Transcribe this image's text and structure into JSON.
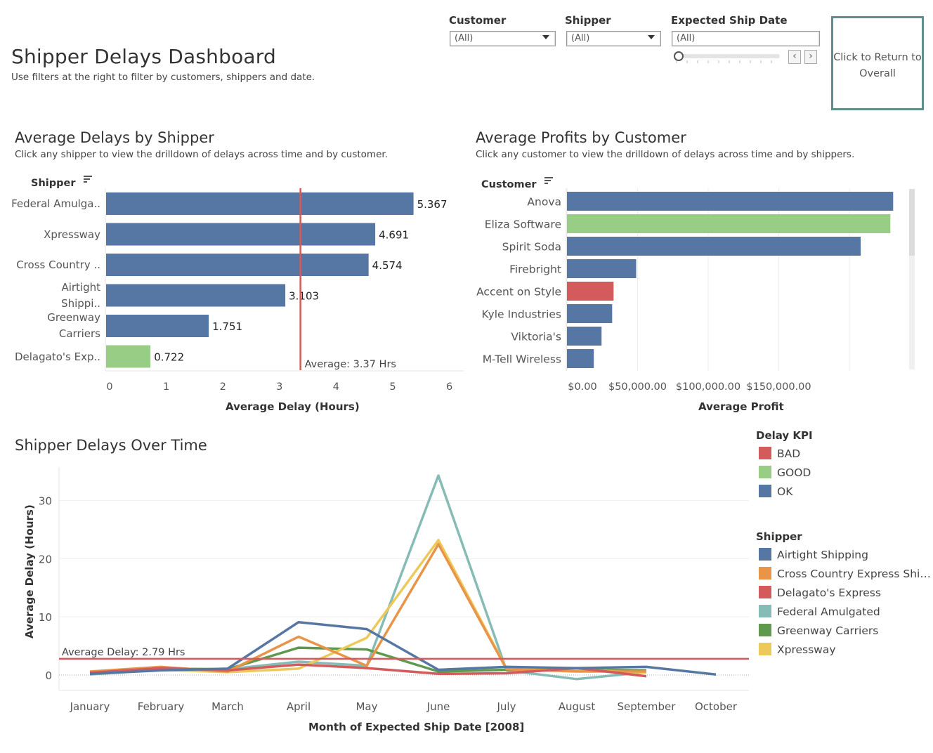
{
  "header": {
    "title": "Shipper Delays Dashboard",
    "subtitle": "Use filters at the right to filter by customers, shippers and date."
  },
  "filters": {
    "customer": {
      "label": "Customer",
      "value": "(All)"
    },
    "shipper": {
      "label": "Shipper",
      "value": "(All)"
    },
    "ship_date": {
      "label": "Expected Ship Date",
      "value": "(All)",
      "slider_position": 0
    }
  },
  "return_button": {
    "label": "Click to Return to Overall"
  },
  "colors": {
    "bad": "#d35b5b",
    "good": "#98cd85",
    "ok": "#5677a4",
    "average_line": "#d35b5b"
  },
  "delays_by_shipper": {
    "title": "Average Delays by Shipper",
    "subtitle": "Click any shipper to view the drilldown of delays across time and by customer.",
    "header": "Shipper",
    "reference_label": "Average: 3.37 Hrs",
    "xlabel": "Average Delay (Hours)"
  },
  "profits_by_customer": {
    "title": "Average Profits by Customer",
    "subtitle": "Click any customer to view the drilldown of delays across time and by shippers.",
    "header": "Customer",
    "xlabel": "Average Profit"
  },
  "delays_over_time": {
    "title": "Shipper Delays Over Time",
    "reference_label": "Average Delay: 2.79 Hrs",
    "xlabel": "Month of Expected Ship Date [2008]",
    "ylabel": "Average Delay (Hours)"
  },
  "legend_kpi": {
    "title": "Delay KPI",
    "items": [
      {
        "label": "BAD",
        "color": "#d35b5b"
      },
      {
        "label": "GOOD",
        "color": "#98cd85"
      },
      {
        "label": "OK",
        "color": "#5677a4"
      }
    ]
  },
  "legend_shipper": {
    "title": "Shipper",
    "items": [
      {
        "label": "Airtight Shipping",
        "color": "#5677a4"
      },
      {
        "label": "Cross Country Express Shi…",
        "color": "#e8954a"
      },
      {
        "label": "Delagato's Express",
        "color": "#d35b5b"
      },
      {
        "label": "Federal Amulgated",
        "color": "#86bcb6"
      },
      {
        "label": "Greenway Carriers",
        "color": "#5e9a4d"
      },
      {
        "label": "Xpressway",
        "color": "#ecc95a"
      }
    ]
  },
  "chart_data": [
    {
      "type": "bar",
      "orientation": "horizontal",
      "title": "Average Delays by Shipper",
      "categories": [
        "Federal Amulga..",
        "Xpressway",
        "Cross Country ..",
        "Airtight Shippi..",
        "Greenway Carriers",
        "Delagato's Exp.."
      ],
      "values": [
        5.367,
        4.691,
        4.574,
        3.103,
        1.751,
        0.722
      ],
      "value_labels": [
        "5.367",
        "4.691",
        "4.574",
        "3.103",
        "1.751",
        "0.722"
      ],
      "kpi": [
        "OK",
        "OK",
        "OK",
        "OK",
        "OK",
        "GOOD"
      ],
      "reference_line": 3.37,
      "xlim": [
        0,
        6
      ],
      "xticks": [
        0,
        1,
        2,
        3,
        4,
        5,
        6
      ],
      "xlabel": "Average Delay (Hours)"
    },
    {
      "type": "bar",
      "orientation": "horizontal",
      "title": "Average Profits by Customer",
      "categories": [
        "Anova",
        "Eliza Software",
        "Spirit Soda",
        "Firebright",
        "Accent on Style",
        "Kyle Industries",
        "Viktoria's",
        "M-Tell Wireless"
      ],
      "values": [
        231000,
        229000,
        208000,
        49000,
        33000,
        32000,
        24500,
        19000
      ],
      "kpi": [
        "OK",
        "GOOD",
        "OK",
        "OK",
        "BAD",
        "OK",
        "OK",
        "OK"
      ],
      "xlim": [
        0,
        240000
      ],
      "xticks": [
        0,
        50000,
        100000,
        150000
      ],
      "xtick_labels": [
        "$0.00",
        "$50,000.00",
        "$100,000.00",
        "$150,000.00"
      ],
      "xlabel": "Average Profit"
    },
    {
      "type": "line",
      "title": "Shipper Delays Over Time",
      "categories": [
        "January",
        "February",
        "March",
        "April",
        "May",
        "June",
        "July",
        "August",
        "September",
        "October"
      ],
      "series": [
        {
          "name": "Federal Amulgated",
          "color": "#86bcb6",
          "values": [
            0.1,
            0.9,
            1.0,
            2.3,
            1.6,
            34.3,
            0.8,
            -0.7,
            0.5,
            null
          ]
        },
        {
          "name": "Greenway Carriers",
          "color": "#5e9a4d",
          "values": [
            0.3,
            1.1,
            1.0,
            4.7,
            4.4,
            0.6,
            0.9,
            0.9,
            0.8,
            null
          ]
        },
        {
          "name": "Xpressway",
          "color": "#ecc95a",
          "values": [
            0.5,
            0.9,
            0.5,
            1.1,
            6.4,
            23.2,
            1.1,
            0.9,
            0.4,
            null
          ]
        },
        {
          "name": "Cross Country Express Shi…",
          "color": "#e8954a",
          "values": [
            0.6,
            1.4,
            0.6,
            6.6,
            1.6,
            22.5,
            1.0,
            0.6,
            0.6,
            null
          ]
        },
        {
          "name": "Delagato's Express",
          "color": "#d35b5b",
          "values": [
            0.4,
            1.2,
            0.8,
            1.8,
            1.2,
            0.2,
            0.3,
            1.2,
            -0.2,
            null
          ]
        },
        {
          "name": "Airtight Shipping",
          "color": "#5677a4",
          "values": [
            0.2,
            0.8,
            1.1,
            9.1,
            7.9,
            0.9,
            1.4,
            1.2,
            1.4,
            0.1
          ]
        }
      ],
      "reference_line": 2.79,
      "ylim": [
        -2.7,
        36
      ],
      "yticks": [
        0,
        10,
        20,
        30
      ],
      "xlabel": "Month of Expected Ship Date [2008]",
      "ylabel": "Average Delay (Hours)"
    }
  ]
}
